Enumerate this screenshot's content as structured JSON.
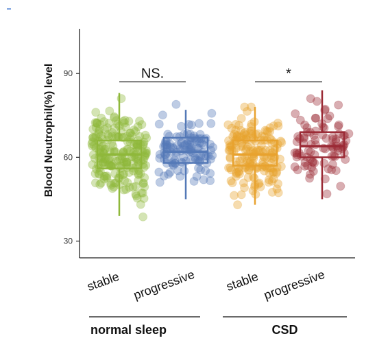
{
  "chart_data": {
    "type": "boxplot-jitter",
    "ylabel": "Blood Neutrophil(%) level",
    "ylim": [
      24,
      106
    ],
    "yticks": [
      30,
      60,
      90
    ],
    "groups": [
      {
        "label": "normal sleep",
        "categories": [
          "stable",
          "progressive"
        ]
      },
      {
        "label": "CSD",
        "categories": [
          "stable",
          "progressive"
        ]
      }
    ],
    "boxes": [
      {
        "group": "normal sleep",
        "category": "stable",
        "color": "#8fb83a",
        "whisker_low": 39,
        "q1": 56,
        "median": 61,
        "q3": 66,
        "whisker_high": 83,
        "n_points": 220,
        "spread": 7.5,
        "range": [
          33,
          84
        ]
      },
      {
        "group": "normal sleep",
        "category": "progressive",
        "color": "#5479b7",
        "whisker_low": 45,
        "q1": 58,
        "median": 62,
        "q3": 67,
        "whisker_high": 77,
        "n_points": 120,
        "spread": 6.5,
        "range": [
          42,
          84
        ]
      },
      {
        "group": "CSD",
        "category": "stable",
        "color": "#e8a22e",
        "whisker_low": 43,
        "q1": 57,
        "median": 61,
        "q3": 66,
        "whisker_high": 78,
        "n_points": 180,
        "spread": 7.0,
        "range": [
          43,
          78
        ]
      },
      {
        "group": "CSD",
        "category": "progressive",
        "color": "#9b2a35",
        "whisker_low": 45,
        "q1": 60,
        "median": 64,
        "q3": 69,
        "whisker_high": 84,
        "n_points": 90,
        "spread": 7.5,
        "range": [
          44,
          84
        ]
      }
    ],
    "annotations": [
      {
        "group": "normal sleep",
        "text": "NS.",
        "y": 87
      },
      {
        "group": "CSD",
        "text": "*",
        "y": 87
      }
    ]
  }
}
